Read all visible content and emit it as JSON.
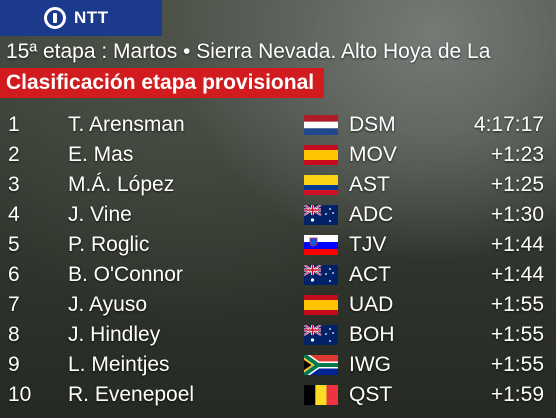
{
  "header": {
    "logo_text": "NTT",
    "stage_title": "15ª etapa : Martos • Sierra Nevada. Alto Hoya de La",
    "classification_label": "Clasificación etapa provisional"
  },
  "standings": [
    {
      "pos": "1",
      "rider": "T. Arensman",
      "flag": "netherlands-flag-icon",
      "team": "DSM",
      "time": "4:17:17"
    },
    {
      "pos": "2",
      "rider": "E. Mas",
      "flag": "spain-flag-icon",
      "team": "MOV",
      "time": "+1:23"
    },
    {
      "pos": "3",
      "rider": "M.Á. López",
      "flag": "colombia-flag-icon",
      "team": "AST",
      "time": "+1:25"
    },
    {
      "pos": "4",
      "rider": "J. Vine",
      "flag": "australia-flag-icon",
      "team": "ADC",
      "time": "+1:30"
    },
    {
      "pos": "5",
      "rider": "P. Roglic",
      "flag": "slovenia-flag-icon",
      "team": "TJV",
      "time": "+1:44"
    },
    {
      "pos": "6",
      "rider": "B. O'Connor",
      "flag": "australia-flag-icon",
      "team": "ACT",
      "time": "+1:44"
    },
    {
      "pos": "7",
      "rider": "J. Ayuso",
      "flag": "spain-flag-icon",
      "team": "UAD",
      "time": "+1:55"
    },
    {
      "pos": "8",
      "rider": "J. Hindley",
      "flag": "australia-flag-icon",
      "team": "BOH",
      "time": "+1:55"
    },
    {
      "pos": "9",
      "rider": "L. Meintjes",
      "flag": "south-africa-flag-icon",
      "team": "IWG",
      "time": "+1:55"
    },
    {
      "pos": "10",
      "rider": "R. Evenepoel",
      "flag": "belgium-flag-icon",
      "team": "QST",
      "time": "+1:59"
    }
  ],
  "colors": {
    "logo_bar": "#1b3a8c",
    "banner": "#d11b1f",
    "text": "#ffffff"
  }
}
